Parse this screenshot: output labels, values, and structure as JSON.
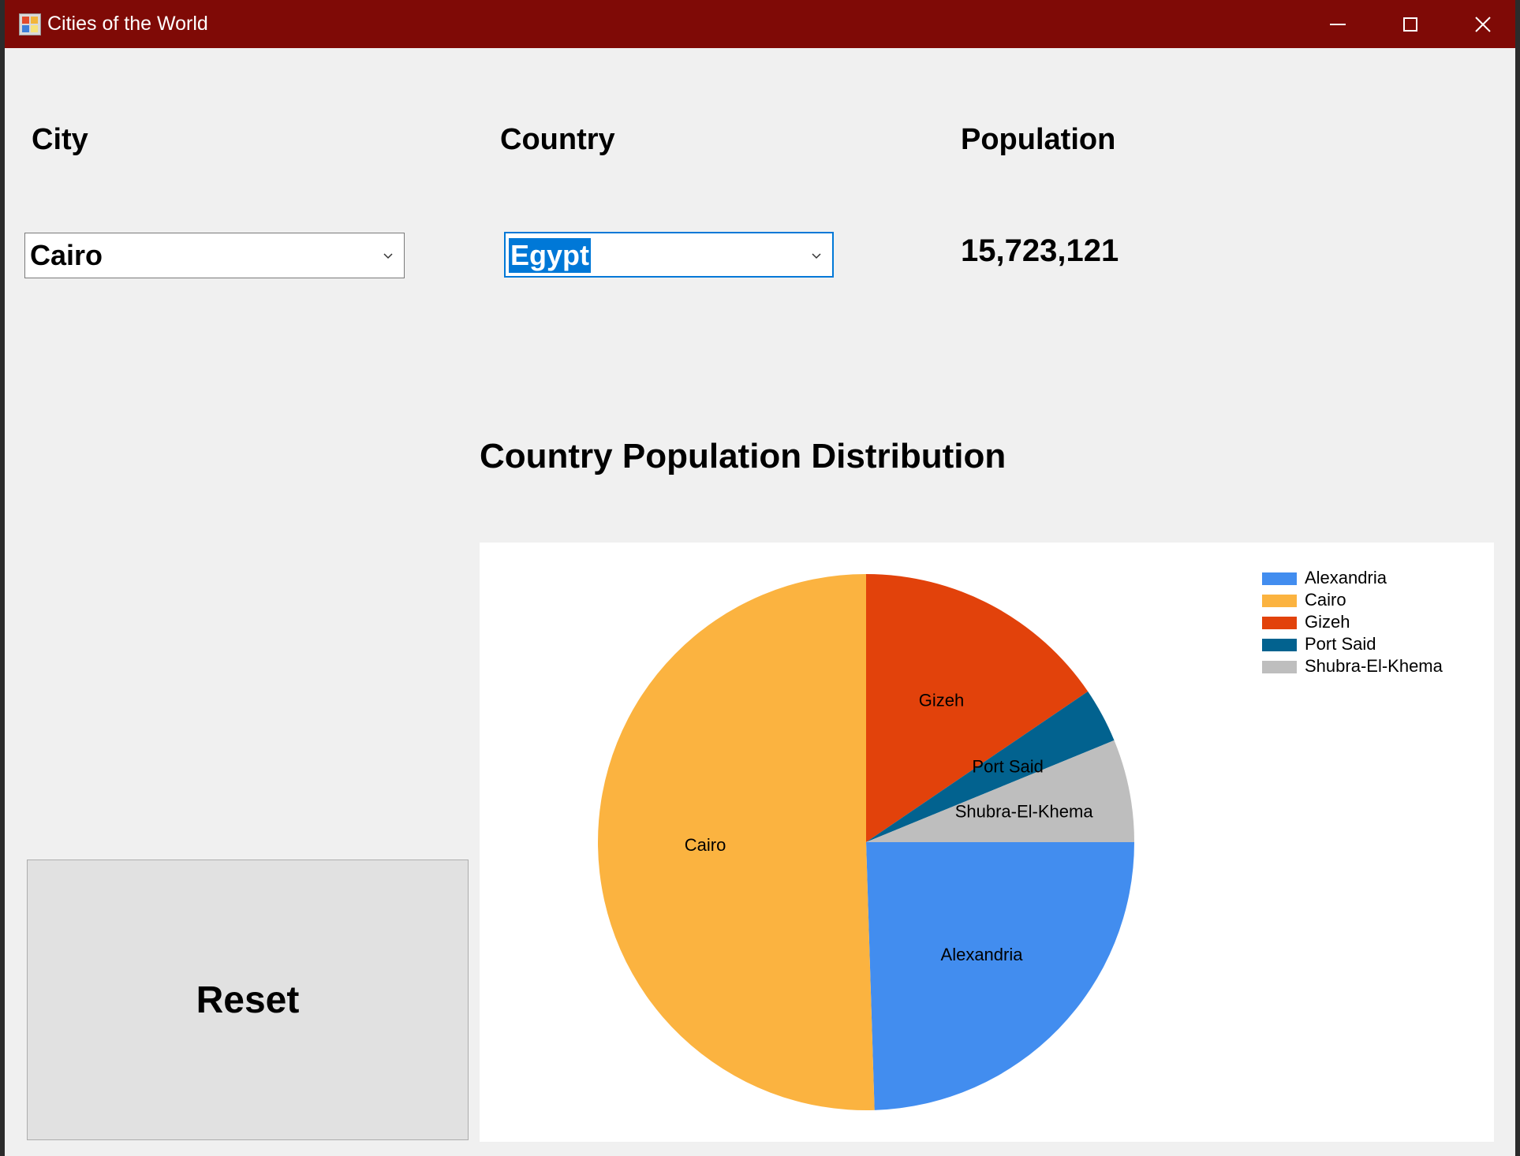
{
  "window": {
    "title": "Cities of the World",
    "titlebar_color": "#7f0a06"
  },
  "labels": {
    "city": "City",
    "country": "Country",
    "population": "Population"
  },
  "city_combo": {
    "value": "Cairo"
  },
  "country_combo": {
    "value": "Egypt"
  },
  "population_value": "15,723,121",
  "reset_button": {
    "label": "Reset"
  },
  "chart_title": "Country Population Distribution",
  "chart_data": {
    "type": "pie",
    "title": "Country Population Distribution",
    "legend": "top-right",
    "slices": [
      {
        "name": "Alexandria",
        "value": 24.5,
        "color": "#428def"
      },
      {
        "name": "Cairo",
        "value": 50.5,
        "color": "#fbb340"
      },
      {
        "name": "Gizeh",
        "value": 15.5,
        "color": "#e2420b"
      },
      {
        "name": "Port Said",
        "value": 3.3,
        "color": "#02628f"
      },
      {
        "name": "Shubra-El-Khema",
        "value": 6.2,
        "color": "#bebebe"
      }
    ]
  }
}
